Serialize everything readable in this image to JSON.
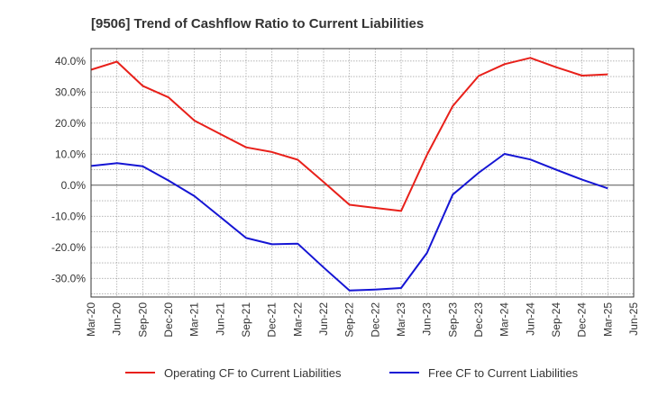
{
  "chart_data": {
    "type": "line",
    "title": "[9506]  Trend of Cashflow Ratio to Current Liabilities",
    "xlabel": "",
    "ylabel": "",
    "categories": [
      "Mar-20",
      "Jun-20",
      "Sep-20",
      "Dec-20",
      "Mar-21",
      "Jun-21",
      "Sep-21",
      "Dec-21",
      "Mar-22",
      "Jun-22",
      "Sep-22",
      "Dec-22",
      "Mar-23",
      "Jun-23",
      "Sep-23",
      "Dec-23",
      "Mar-24",
      "Jun-24",
      "Sep-24",
      "Dec-24",
      "Mar-25",
      "Jun-25"
    ],
    "ylim": [
      -36,
      44
    ],
    "yticks": [
      -30,
      -20,
      -10,
      0,
      10,
      20,
      30,
      40
    ],
    "ytick_labels": [
      "-30.0%",
      "-20.0%",
      "-10.0%",
      "0.0%",
      "10.0%",
      "20.0%",
      "30.0%",
      "40.0%"
    ],
    "grid": true,
    "legend_position": "bottom",
    "series": [
      {
        "name": "Operating CF to Current Liabilities",
        "color": "#e8201a",
        "values": [
          37.2,
          39.8,
          32.0,
          28.3,
          20.8,
          16.5,
          12.2,
          10.7,
          8.2,
          1.0,
          -6.3,
          -7.3,
          -8.3,
          9.8,
          25.5,
          35.2,
          39.0,
          41.0,
          38.0,
          35.3,
          35.7,
          null
        ]
      },
      {
        "name": "Free CF to Current Liabilities",
        "color": "#1515d4",
        "values": [
          6.2,
          7.1,
          6.1,
          1.5,
          -3.5,
          -10.2,
          -17.0,
          -19.0,
          -18.8,
          -26.5,
          -33.9,
          -33.6,
          -33.1,
          -21.8,
          -3.0,
          4.0,
          10.1,
          8.3,
          5.0,
          1.8,
          -1.0,
          null
        ]
      }
    ]
  }
}
